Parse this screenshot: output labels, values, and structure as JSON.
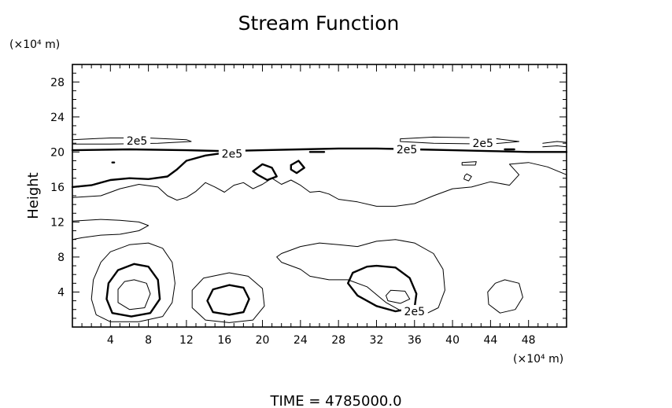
{
  "chart_data": {
    "type": "contour",
    "title": "Stream Function",
    "ylabel": "Height",
    "y_unit_label": "(×10⁴ m)",
    "x_unit_label": "(×10⁴ m)",
    "xlim": [
      0,
      52
    ],
    "ylim": [
      0,
      30
    ],
    "x_ticks": [
      4,
      8,
      12,
      16,
      20,
      24,
      28,
      32,
      36,
      40,
      44,
      48
    ],
    "y_ticks": [
      4,
      8,
      12,
      16,
      20,
      24,
      28
    ],
    "x_tick_labels": [
      "4",
      "8",
      "12",
      "16",
      "20",
      "24",
      "28",
      "32",
      "36",
      "40",
      "44",
      "48"
    ],
    "y_tick_labels": [
      "4",
      "8",
      "12",
      "16",
      "20",
      "24",
      "28"
    ],
    "contour_labels": [
      {
        "text": "2e5",
        "x": 6.8,
        "y": 21.3
      },
      {
        "text": "2e5",
        "x": 16.8,
        "y": 19.8
      },
      {
        "text": "2e5",
        "x": 35.2,
        "y": 20.3
      },
      {
        "text": "2e5",
        "x": 43.2,
        "y": 21.0
      },
      {
        "text": "2e5",
        "x": 36.0,
        "y": 1.8
      }
    ],
    "contours": [
      {
        "weight": "thin",
        "points": [
          [
            0,
            21.4
          ],
          [
            4,
            21.6
          ],
          [
            8,
            21.6
          ],
          [
            12,
            21.4
          ],
          [
            12.5,
            21.2
          ],
          [
            9,
            21.0
          ],
          [
            4,
            20.9
          ],
          [
            0,
            20.9
          ]
        ]
      },
      {
        "weight": "bold",
        "points": [
          [
            0,
            20.2
          ],
          [
            6,
            20.3
          ],
          [
            12,
            20.2
          ],
          [
            16,
            20.1
          ],
          [
            20,
            20.2
          ],
          [
            24,
            20.3
          ],
          [
            28,
            20.4
          ],
          [
            32,
            20.4
          ],
          [
            36,
            20.3
          ],
          [
            40,
            20.2
          ],
          [
            44,
            20.1
          ],
          [
            48,
            20.0
          ],
          [
            52,
            20.0
          ]
        ]
      },
      {
        "weight": "bold",
        "points": [
          [
            0,
            16.0
          ],
          [
            2,
            16.2
          ],
          [
            4,
            16.8
          ],
          [
            6,
            17.0
          ],
          [
            8,
            16.9
          ],
          [
            10,
            17.2
          ],
          [
            11,
            18.0
          ],
          [
            12,
            19.0
          ],
          [
            14,
            19.6
          ],
          [
            16,
            19.9
          ]
        ]
      },
      {
        "weight": "thin",
        "points": [
          [
            0,
            14.8
          ],
          [
            3,
            15.0
          ],
          [
            5,
            15.8
          ],
          [
            7,
            16.3
          ],
          [
            9,
            16.0
          ],
          [
            10,
            15.0
          ],
          [
            11,
            14.5
          ],
          [
            12,
            14.8
          ],
          [
            13,
            15.5
          ],
          [
            14,
            16.5
          ],
          [
            15,
            16.0
          ],
          [
            16,
            15.4
          ],
          [
            17,
            16.2
          ],
          [
            18,
            16.5
          ],
          [
            19,
            15.8
          ],
          [
            20,
            16.3
          ],
          [
            21,
            17.0
          ],
          [
            22,
            16.3
          ],
          [
            23,
            16.8
          ],
          [
            24,
            16.2
          ],
          [
            25,
            15.4
          ],
          [
            26,
            15.5
          ],
          [
            27,
            15.2
          ],
          [
            28,
            14.6
          ],
          [
            30,
            14.3
          ],
          [
            32,
            13.8
          ],
          [
            34,
            13.8
          ],
          [
            36,
            14.1
          ],
          [
            38,
            15.0
          ],
          [
            40,
            15.8
          ],
          [
            42,
            16.0
          ],
          [
            44,
            16.6
          ],
          [
            46,
            16.2
          ],
          [
            47,
            17.4
          ],
          [
            46,
            18.6
          ],
          [
            48,
            18.8
          ],
          [
            50,
            18.3
          ],
          [
            52,
            17.4
          ]
        ]
      },
      {
        "weight": "thin",
        "points": [
          [
            0,
            12.1
          ],
          [
            3,
            12.3
          ],
          [
            5,
            12.2
          ],
          [
            7,
            12.0
          ],
          [
            8,
            11.6
          ],
          [
            7,
            11.0
          ],
          [
            5,
            10.6
          ],
          [
            3,
            10.5
          ],
          [
            1,
            10.2
          ],
          [
            0,
            10.0
          ]
        ]
      },
      {
        "weight": "thin",
        "points": [
          [
            22,
            8.4
          ],
          [
            24,
            9.2
          ],
          [
            26,
            9.6
          ],
          [
            28,
            9.4
          ],
          [
            30,
            9.2
          ],
          [
            32,
            9.8
          ],
          [
            34,
            10.0
          ],
          [
            36,
            9.6
          ],
          [
            38,
            8.4
          ],
          [
            39,
            6.6
          ],
          [
            39.2,
            4.2
          ],
          [
            38.5,
            2.2
          ],
          [
            37,
            1.4
          ],
          [
            35,
            1.6
          ],
          [
            33,
            2.8
          ],
          [
            31,
            4.6
          ],
          [
            29,
            5.4
          ],
          [
            27,
            5.4
          ],
          [
            25,
            5.8
          ],
          [
            24,
            6.6
          ],
          [
            22,
            7.4
          ],
          [
            21.5,
            8.0
          ],
          [
            22,
            8.4
          ]
        ]
      },
      {
        "weight": "bold",
        "points": [
          [
            32,
            7.0
          ],
          [
            34,
            6.8
          ],
          [
            35.5,
            5.6
          ],
          [
            36.2,
            3.8
          ],
          [
            36,
            2.2
          ],
          [
            34,
            1.8
          ],
          [
            32,
            2.4
          ],
          [
            30,
            3.6
          ],
          [
            29,
            5.0
          ],
          [
            29.5,
            6.2
          ],
          [
            31,
            6.9
          ],
          [
            32,
            7.0
          ]
        ]
      },
      {
        "weight": "thin",
        "points": [
          [
            33.5,
            4.2
          ],
          [
            35,
            4.1
          ],
          [
            35.5,
            3.2
          ],
          [
            34.5,
            2.7
          ],
          [
            33.2,
            3.0
          ],
          [
            33,
            3.6
          ],
          [
            33.5,
            4.2
          ]
        ]
      },
      {
        "weight": "thin",
        "points": [
          [
            4,
            8.6
          ],
          [
            6,
            9.4
          ],
          [
            8,
            9.6
          ],
          [
            9.5,
            9.0
          ],
          [
            10.5,
            7.4
          ],
          [
            10.8,
            5.0
          ],
          [
            10.5,
            2.8
          ],
          [
            9.5,
            1.2
          ],
          [
            7,
            0.6
          ],
          [
            4,
            0.6
          ],
          [
            2.5,
            1.4
          ],
          [
            2,
            3.2
          ],
          [
            2.2,
            5.4
          ],
          [
            3,
            7.4
          ],
          [
            4,
            8.6
          ]
        ]
      },
      {
        "weight": "bold",
        "points": [
          [
            6.5,
            7.2
          ],
          [
            8,
            6.9
          ],
          [
            9,
            5.4
          ],
          [
            9.2,
            3.2
          ],
          [
            8.2,
            1.6
          ],
          [
            6.2,
            1.2
          ],
          [
            4.2,
            1.6
          ],
          [
            3.6,
            3.2
          ],
          [
            3.8,
            5.0
          ],
          [
            4.8,
            6.5
          ],
          [
            6.5,
            7.2
          ]
        ]
      },
      {
        "weight": "thin",
        "points": [
          [
            6.5,
            5.4
          ],
          [
            7.8,
            5.0
          ],
          [
            8.2,
            3.8
          ],
          [
            7.6,
            2.2
          ],
          [
            6,
            2.0
          ],
          [
            4.8,
            2.8
          ],
          [
            4.8,
            4.3
          ],
          [
            5.5,
            5.2
          ],
          [
            6.5,
            5.4
          ]
        ]
      },
      {
        "weight": "thin",
        "points": [
          [
            16.5,
            6.2
          ],
          [
            18.5,
            5.8
          ],
          [
            20,
            4.4
          ],
          [
            20.2,
            2.4
          ],
          [
            19,
            0.8
          ],
          [
            16.5,
            0.5
          ],
          [
            14,
            0.8
          ],
          [
            12.6,
            2.2
          ],
          [
            12.6,
            4.2
          ],
          [
            13.8,
            5.6
          ],
          [
            16.5,
            6.2
          ]
        ]
      },
      {
        "weight": "bold",
        "points": [
          [
            16.5,
            4.8
          ],
          [
            18,
            4.5
          ],
          [
            18.6,
            3.2
          ],
          [
            18,
            1.7
          ],
          [
            16.5,
            1.4
          ],
          [
            14.8,
            1.7
          ],
          [
            14.2,
            3.0
          ],
          [
            14.8,
            4.3
          ],
          [
            16.5,
            4.8
          ]
        ]
      },
      {
        "weight": "thin",
        "points": [
          [
            45.5,
            5.4
          ],
          [
            47,
            5.0
          ],
          [
            47.4,
            3.4
          ],
          [
            46.6,
            2.0
          ],
          [
            45,
            1.6
          ],
          [
            43.8,
            2.6
          ],
          [
            43.7,
            4.0
          ],
          [
            44.5,
            5.0
          ],
          [
            45.5,
            5.4
          ]
        ]
      },
      {
        "weight": "bold",
        "points": [
          [
            19,
            17.8
          ],
          [
            20,
            18.6
          ],
          [
            21,
            18.2
          ],
          [
            21.5,
            17.2
          ],
          [
            20.5,
            16.8
          ],
          [
            19.5,
            17.4
          ],
          [
            19,
            17.8
          ]
        ]
      },
      {
        "weight": "bold",
        "points": [
          [
            23,
            18.5
          ],
          [
            23.8,
            19.0
          ],
          [
            24.4,
            18.2
          ],
          [
            23.6,
            17.6
          ],
          [
            23,
            18.0
          ],
          [
            23,
            18.5
          ]
        ]
      },
      {
        "weight": "thin",
        "points": [
          [
            41.5,
            17.5
          ],
          [
            42,
            17.2
          ],
          [
            41.7,
            16.7
          ],
          [
            41.2,
            16.9
          ],
          [
            41.3,
            17.3
          ],
          [
            41.5,
            17.5
          ]
        ]
      },
      {
        "weight": "thin",
        "points": [
          [
            41,
            18.8
          ],
          [
            42.5,
            18.9
          ],
          [
            42.4,
            18.5
          ],
          [
            41,
            18.5
          ],
          [
            41,
            18.8
          ]
        ]
      },
      {
        "weight": "thin",
        "points": [
          [
            34.5,
            21.5
          ],
          [
            38,
            21.7
          ],
          [
            44,
            21.6
          ],
          [
            47,
            21.2
          ],
          [
            44,
            20.9
          ],
          [
            38,
            21.0
          ],
          [
            34.5,
            21.2
          ],
          [
            34.5,
            21.5
          ]
        ]
      },
      {
        "weight": "thin",
        "points": [
          [
            49.5,
            21.0
          ],
          [
            51,
            21.2
          ],
          [
            52,
            21.1
          ]
        ]
      },
      {
        "weight": "thin",
        "points": [
          [
            49.5,
            20.6
          ],
          [
            51,
            20.7
          ],
          [
            52,
            20.6
          ]
        ]
      },
      {
        "weight": "bold",
        "points": [
          [
            25,
            20.0
          ],
          [
            26.5,
            20.0
          ]
        ]
      },
      {
        "weight": "bold",
        "points": [
          [
            45.5,
            20.3
          ],
          [
            46.5,
            20.3
          ]
        ]
      },
      {
        "weight": "bold",
        "points": [
          [
            4.2,
            18.8
          ],
          [
            4.4,
            18.8
          ]
        ]
      }
    ]
  },
  "footer": {
    "time_text": "TIME  =  4785000.0"
  }
}
